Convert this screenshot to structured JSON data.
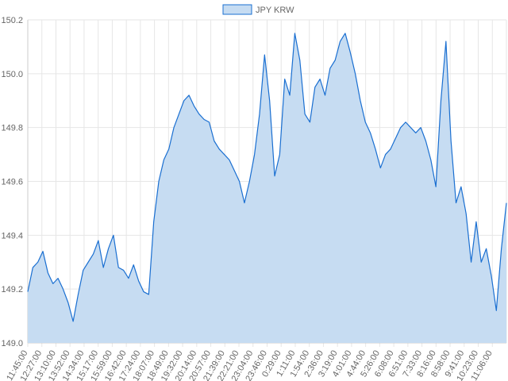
{
  "chart_data": {
    "type": "area",
    "legend": [
      {
        "label": "JPY KRW",
        "stroke": "#1a6fd1",
        "fill": "#c6dcf2"
      }
    ],
    "legend_position": "top-center",
    "grid": true,
    "ylim": [
      149.0,
      150.2
    ],
    "y_ticks": [
      "149.0",
      "149.2",
      "149.4",
      "149.6",
      "149.8",
      "150.0",
      "150.2"
    ],
    "x_ticks": [
      "11:45:00",
      "12:27:00",
      "13:10:00",
      "13:52:00",
      "14:34:00",
      "15:17:00",
      "15:59:00",
      "16:42:00",
      "17:24:00",
      "18:07:00",
      "18:49:00",
      "19:32:00",
      "20:14:00",
      "20:57:00",
      "21:39:00",
      "22:21:00",
      "23:04:00",
      "23:46:00",
      "0:29:00",
      "1:11:00",
      "1:54:00",
      "2:36:00",
      "3:19:00",
      "4:01:00",
      "4:44:00",
      "5:26:00",
      "6:08:00",
      "6:51:00",
      "7:33:00",
      "8:16:00",
      "8:58:00",
      "9:41:00",
      "10:23:00",
      "11:06:00"
    ],
    "series": [
      {
        "name": "JPY KRW",
        "color": "#1a6fd1",
        "fill": "#c6dcf2",
        "values": [
          149.19,
          149.28,
          149.3,
          149.34,
          149.26,
          149.22,
          149.24,
          149.2,
          149.15,
          149.08,
          149.18,
          149.27,
          149.3,
          149.33,
          149.38,
          149.28,
          149.35,
          149.4,
          149.28,
          149.27,
          149.24,
          149.29,
          149.23,
          149.19,
          149.18,
          149.45,
          149.6,
          149.68,
          149.72,
          149.8,
          149.85,
          149.9,
          149.92,
          149.88,
          149.85,
          149.83,
          149.82,
          149.75,
          149.72,
          149.7,
          149.68,
          149.64,
          149.6,
          149.52,
          149.6,
          149.7,
          149.85,
          150.07,
          149.9,
          149.62,
          149.7,
          149.98,
          149.92,
          150.15,
          150.05,
          149.85,
          149.82,
          149.95,
          149.98,
          149.92,
          150.02,
          150.05,
          150.12,
          150.15,
          150.08,
          150.0,
          149.9,
          149.82,
          149.78,
          149.72,
          149.65,
          149.7,
          149.72,
          149.76,
          149.8,
          149.82,
          149.8,
          149.78,
          149.8,
          149.75,
          149.68,
          149.58,
          149.9,
          150.12,
          149.75,
          149.52,
          149.58,
          149.48,
          149.3,
          149.45,
          149.3,
          149.35,
          149.25,
          149.12,
          149.35,
          149.52
        ]
      }
    ]
  }
}
